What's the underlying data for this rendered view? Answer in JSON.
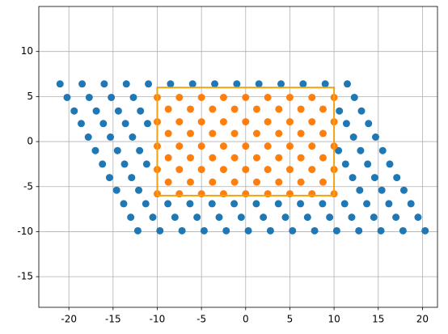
{
  "chart_data": {
    "type": "scatter",
    "xlim": [
      -23.4,
      21.7
    ],
    "ylim": [
      -18.4,
      15.0
    ],
    "xticks": [
      -20,
      -15,
      -10,
      -5,
      0,
      5,
      10,
      15,
      20
    ],
    "yticks": [
      -15,
      -10,
      -5,
      0,
      5,
      10
    ],
    "grid": true,
    "series": [
      {
        "color": "#1f77b4",
        "x": [
          -21,
          -18.5,
          -16,
          -13.5,
          -11,
          -8.5,
          -6,
          -3.5,
          -1,
          1.5,
          4,
          6.5,
          9,
          11.5,
          -20.2,
          -17.7,
          -15.2,
          -12.7,
          12.3,
          -19.4,
          -16.9,
          -14.4,
          -11.9,
          10.6,
          13.1,
          -18.6,
          -16.1,
          -13.6,
          -11.1,
          11.4,
          13.9,
          -17.8,
          -15.3,
          -12.8,
          12.2,
          14.7,
          -17,
          -14.5,
          -12,
          10.5,
          13,
          15.5,
          -16.2,
          -13.7,
          -11.2,
          11.3,
          13.8,
          16.3,
          -15.4,
          -12.9,
          12.1,
          14.6,
          17.1,
          -14.6,
          -12.1,
          12.9,
          15.4,
          17.9,
          -13.8,
          -11.3,
          -8.8,
          -6.3,
          -3.8,
          -1.3,
          1.2,
          3.7,
          6.2,
          8.7,
          11.2,
          13.7,
          16.2,
          18.7,
          -13,
          -10.5,
          -8,
          -5.5,
          -3,
          -0.5,
          2,
          4.5,
          7,
          9.5,
          12,
          14.5,
          17,
          19.5,
          -12.2,
          -9.7,
          -7.2,
          -4.7,
          -2.2,
          0.3,
          2.8,
          5.3,
          7.8,
          10.3,
          12.8,
          15.3,
          17.8,
          20.3
        ],
        "y": [
          6.4,
          6.4,
          6.4,
          6.4,
          6.4,
          6.4,
          6.4,
          6.4,
          6.4,
          6.4,
          6.4,
          6.4,
          6.4,
          6.4,
          4.9,
          4.9,
          4.9,
          4.9,
          4.9,
          3.4,
          3.4,
          3.4,
          3.4,
          3.4,
          3.4,
          2.0,
          2.0,
          2.0,
          2.0,
          2.0,
          2.0,
          0.5,
          0.5,
          0.5,
          0.5,
          0.5,
          -1.0,
          -1.0,
          -1.0,
          -1.0,
          -1.0,
          -1.0,
          -2.5,
          -2.5,
          -2.5,
          -2.5,
          -2.5,
          -2.5,
          -4.0,
          -4.0,
          -4.0,
          -4.0,
          -4.0,
          -5.4,
          -5.4,
          -5.4,
          -5.4,
          -5.4,
          -6.9,
          -6.9,
          -6.9,
          -6.9,
          -6.9,
          -6.9,
          -6.9,
          -6.9,
          -6.9,
          -6.9,
          -6.9,
          -6.9,
          -6.9,
          -6.9,
          -8.4,
          -8.4,
          -8.4,
          -8.4,
          -8.4,
          -8.4,
          -8.4,
          -8.4,
          -8.4,
          -8.4,
          -8.4,
          -8.4,
          -8.4,
          -8.4,
          -9.9,
          -9.9,
          -9.9,
          -9.9,
          -9.9,
          -9.9,
          -9.9,
          -9.9,
          -9.9,
          -9.9,
          -9.9,
          -9.9,
          -9.9,
          -9.9
        ]
      },
      {
        "color": "#ff7f0e",
        "x": [
          -10,
          -7.5,
          -5,
          -2.5,
          0,
          2.5,
          5,
          7.5,
          10,
          -8.75,
          -6.25,
          -3.75,
          -1.25,
          1.25,
          3.75,
          6.25,
          8.75,
          -10,
          -7.5,
          -5,
          -2.5,
          0,
          2.5,
          5,
          7.5,
          10,
          -8.75,
          -6.25,
          -3.75,
          -1.25,
          1.25,
          3.75,
          6.25,
          8.75,
          -10,
          -7.5,
          -5,
          -2.5,
          0,
          2.5,
          5,
          7.5,
          10,
          -8.75,
          -6.25,
          -3.75,
          -1.25,
          1.25,
          3.75,
          6.25,
          8.75,
          -10,
          -7.5,
          -5,
          -2.5,
          0,
          2.5,
          5,
          7.5,
          10,
          -8.75,
          -6.25,
          -3.75,
          -1.25,
          1.25,
          3.75,
          6.25,
          8.75,
          -10,
          -7.5,
          -5,
          -2.5,
          0,
          2.5,
          5,
          7.5,
          10
        ],
        "y": [
          4.9,
          4.9,
          4.9,
          4.9,
          4.9,
          4.9,
          4.9,
          4.9,
          4.9,
          3.6,
          3.6,
          3.6,
          3.6,
          3.6,
          3.6,
          3.6,
          3.6,
          2.2,
          2.2,
          2.2,
          2.2,
          2.2,
          2.2,
          2.2,
          2.2,
          2.2,
          0.9,
          0.9,
          0.9,
          0.9,
          0.9,
          0.9,
          0.9,
          0.9,
          -0.5,
          -0.5,
          -0.5,
          -0.5,
          -0.5,
          -0.5,
          -0.5,
          -0.5,
          -0.5,
          -1.8,
          -1.8,
          -1.8,
          -1.8,
          -1.8,
          -1.8,
          -1.8,
          -1.8,
          -3.1,
          -3.1,
          -3.1,
          -3.1,
          -3.1,
          -3.1,
          -3.1,
          -3.1,
          -3.1,
          -4.5,
          -4.5,
          -4.5,
          -4.5,
          -4.5,
          -4.5,
          -4.5,
          -4.5,
          -5.8,
          -5.8,
          -5.8,
          -5.8,
          -5.8,
          -5.8,
          -5.8,
          -5.8,
          -5.8
        ]
      }
    ],
    "outline": {
      "color": "#f2a20c",
      "x": [
        -10,
        10,
        10,
        -10,
        -10
      ],
      "y": [
        -6,
        -6,
        6,
        6,
        -6
      ]
    }
  }
}
